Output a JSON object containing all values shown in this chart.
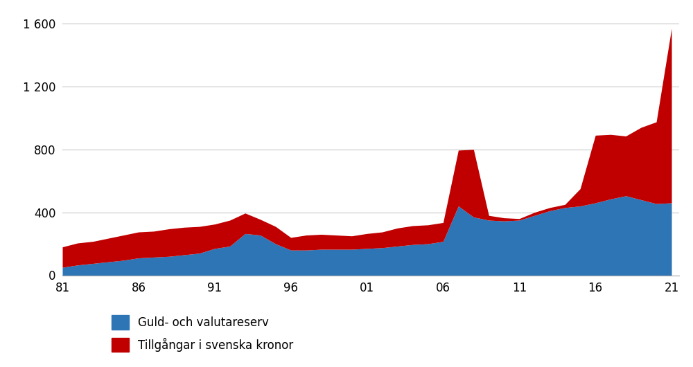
{
  "years": [
    1981,
    1982,
    1983,
    1984,
    1985,
    1986,
    1987,
    1988,
    1989,
    1990,
    1991,
    1992,
    1993,
    1994,
    1995,
    1996,
    1997,
    1998,
    1999,
    2000,
    2001,
    2002,
    2003,
    2004,
    2005,
    2006,
    2007,
    2008,
    2009,
    2010,
    2011,
    2012,
    2013,
    2014,
    2015,
    2016,
    2017,
    2018,
    2019,
    2020,
    2021
  ],
  "gold_forex": [
    50,
    65,
    75,
    85,
    95,
    110,
    115,
    120,
    130,
    140,
    170,
    185,
    265,
    255,
    200,
    160,
    160,
    165,
    165,
    165,
    170,
    175,
    185,
    195,
    200,
    215,
    440,
    370,
    350,
    345,
    350,
    380,
    410,
    430,
    440,
    460,
    485,
    505,
    480,
    455,
    460
  ],
  "sek_assets": [
    130,
    140,
    140,
    150,
    160,
    165,
    165,
    175,
    175,
    170,
    155,
    165,
    130,
    100,
    110,
    80,
    95,
    95,
    90,
    85,
    95,
    100,
    115,
    120,
    120,
    120,
    355,
    430,
    30,
    20,
    10,
    20,
    20,
    20,
    110,
    430,
    410,
    380,
    460,
    520,
    1110
  ],
  "gold_forex_color": "#2E75B6",
  "sek_assets_color": "#C00000",
  "legend_label_1": "Guld- och valutareserv",
  "legend_label_2": "Tillgångar i svenska kronor",
  "yticks": [
    0,
    400,
    800,
    1200,
    1600
  ],
  "ylim": [
    0,
    1680
  ],
  "xlim": [
    1981,
    2021.5
  ],
  "xtick_labels": [
    "81",
    "86",
    "91",
    "96",
    "01",
    "06",
    "11",
    "16",
    "21"
  ],
  "xtick_positions": [
    1981,
    1986,
    1991,
    1996,
    2001,
    2006,
    2011,
    2016,
    2021
  ],
  "background_color": "#ffffff",
  "grid_color": "#c8c8c8"
}
